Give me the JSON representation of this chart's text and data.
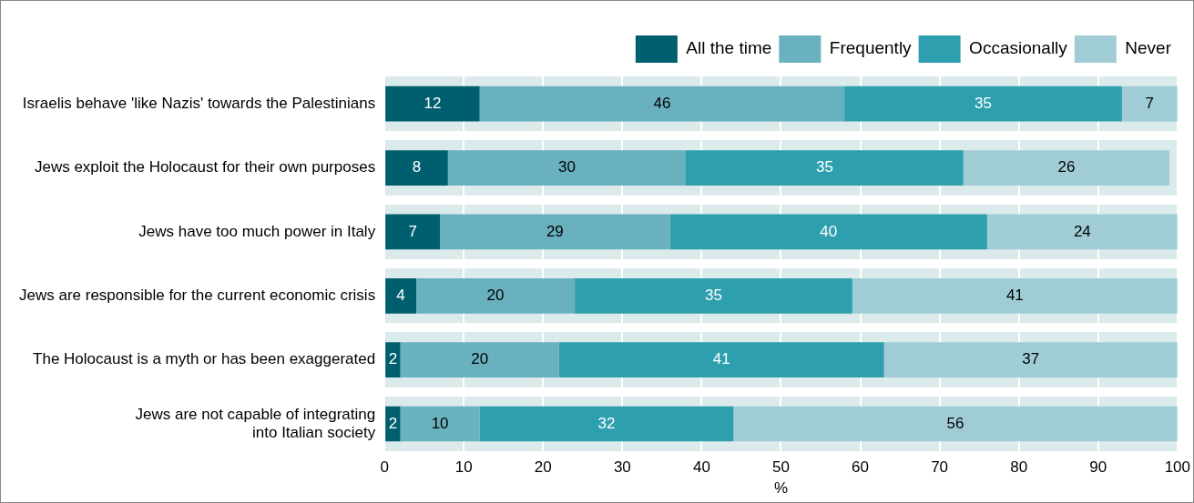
{
  "chart_data": {
    "type": "bar",
    "orientation": "horizontal",
    "stacked": true,
    "data_labels": true,
    "grid": true,
    "legend": "top right",
    "xlabel": "%",
    "xlim": [
      0,
      100
    ],
    "xticks": [
      0,
      10,
      20,
      30,
      40,
      50,
      60,
      70,
      80,
      90,
      100
    ],
    "categories": [
      "Israelis behave 'like Nazis' towards the Palestinians",
      "Jews exploit the Holocaust for their own purposes",
      "Jews have too much power in Italy",
      "Jews are responsible for the current economic crisis",
      "The Holocaust is a myth or has been exaggerated",
      "Jews are not capable of integrating\ninto Italian society"
    ],
    "series": [
      {
        "name": "All the time",
        "color": "#005f6e",
        "values": [
          12,
          8,
          7,
          4,
          2,
          2
        ]
      },
      {
        "name": "Frequently",
        "color": "#6ab1bf",
        "values": [
          46,
          30,
          29,
          20,
          20,
          10
        ]
      },
      {
        "name": "Occasionally",
        "color": "#2e9fae",
        "values": [
          35,
          35,
          40,
          35,
          41,
          32
        ]
      },
      {
        "name": "Never",
        "color": "#a0cdd5",
        "values": [
          7,
          26,
          24,
          41,
          37,
          56
        ]
      }
    ]
  }
}
